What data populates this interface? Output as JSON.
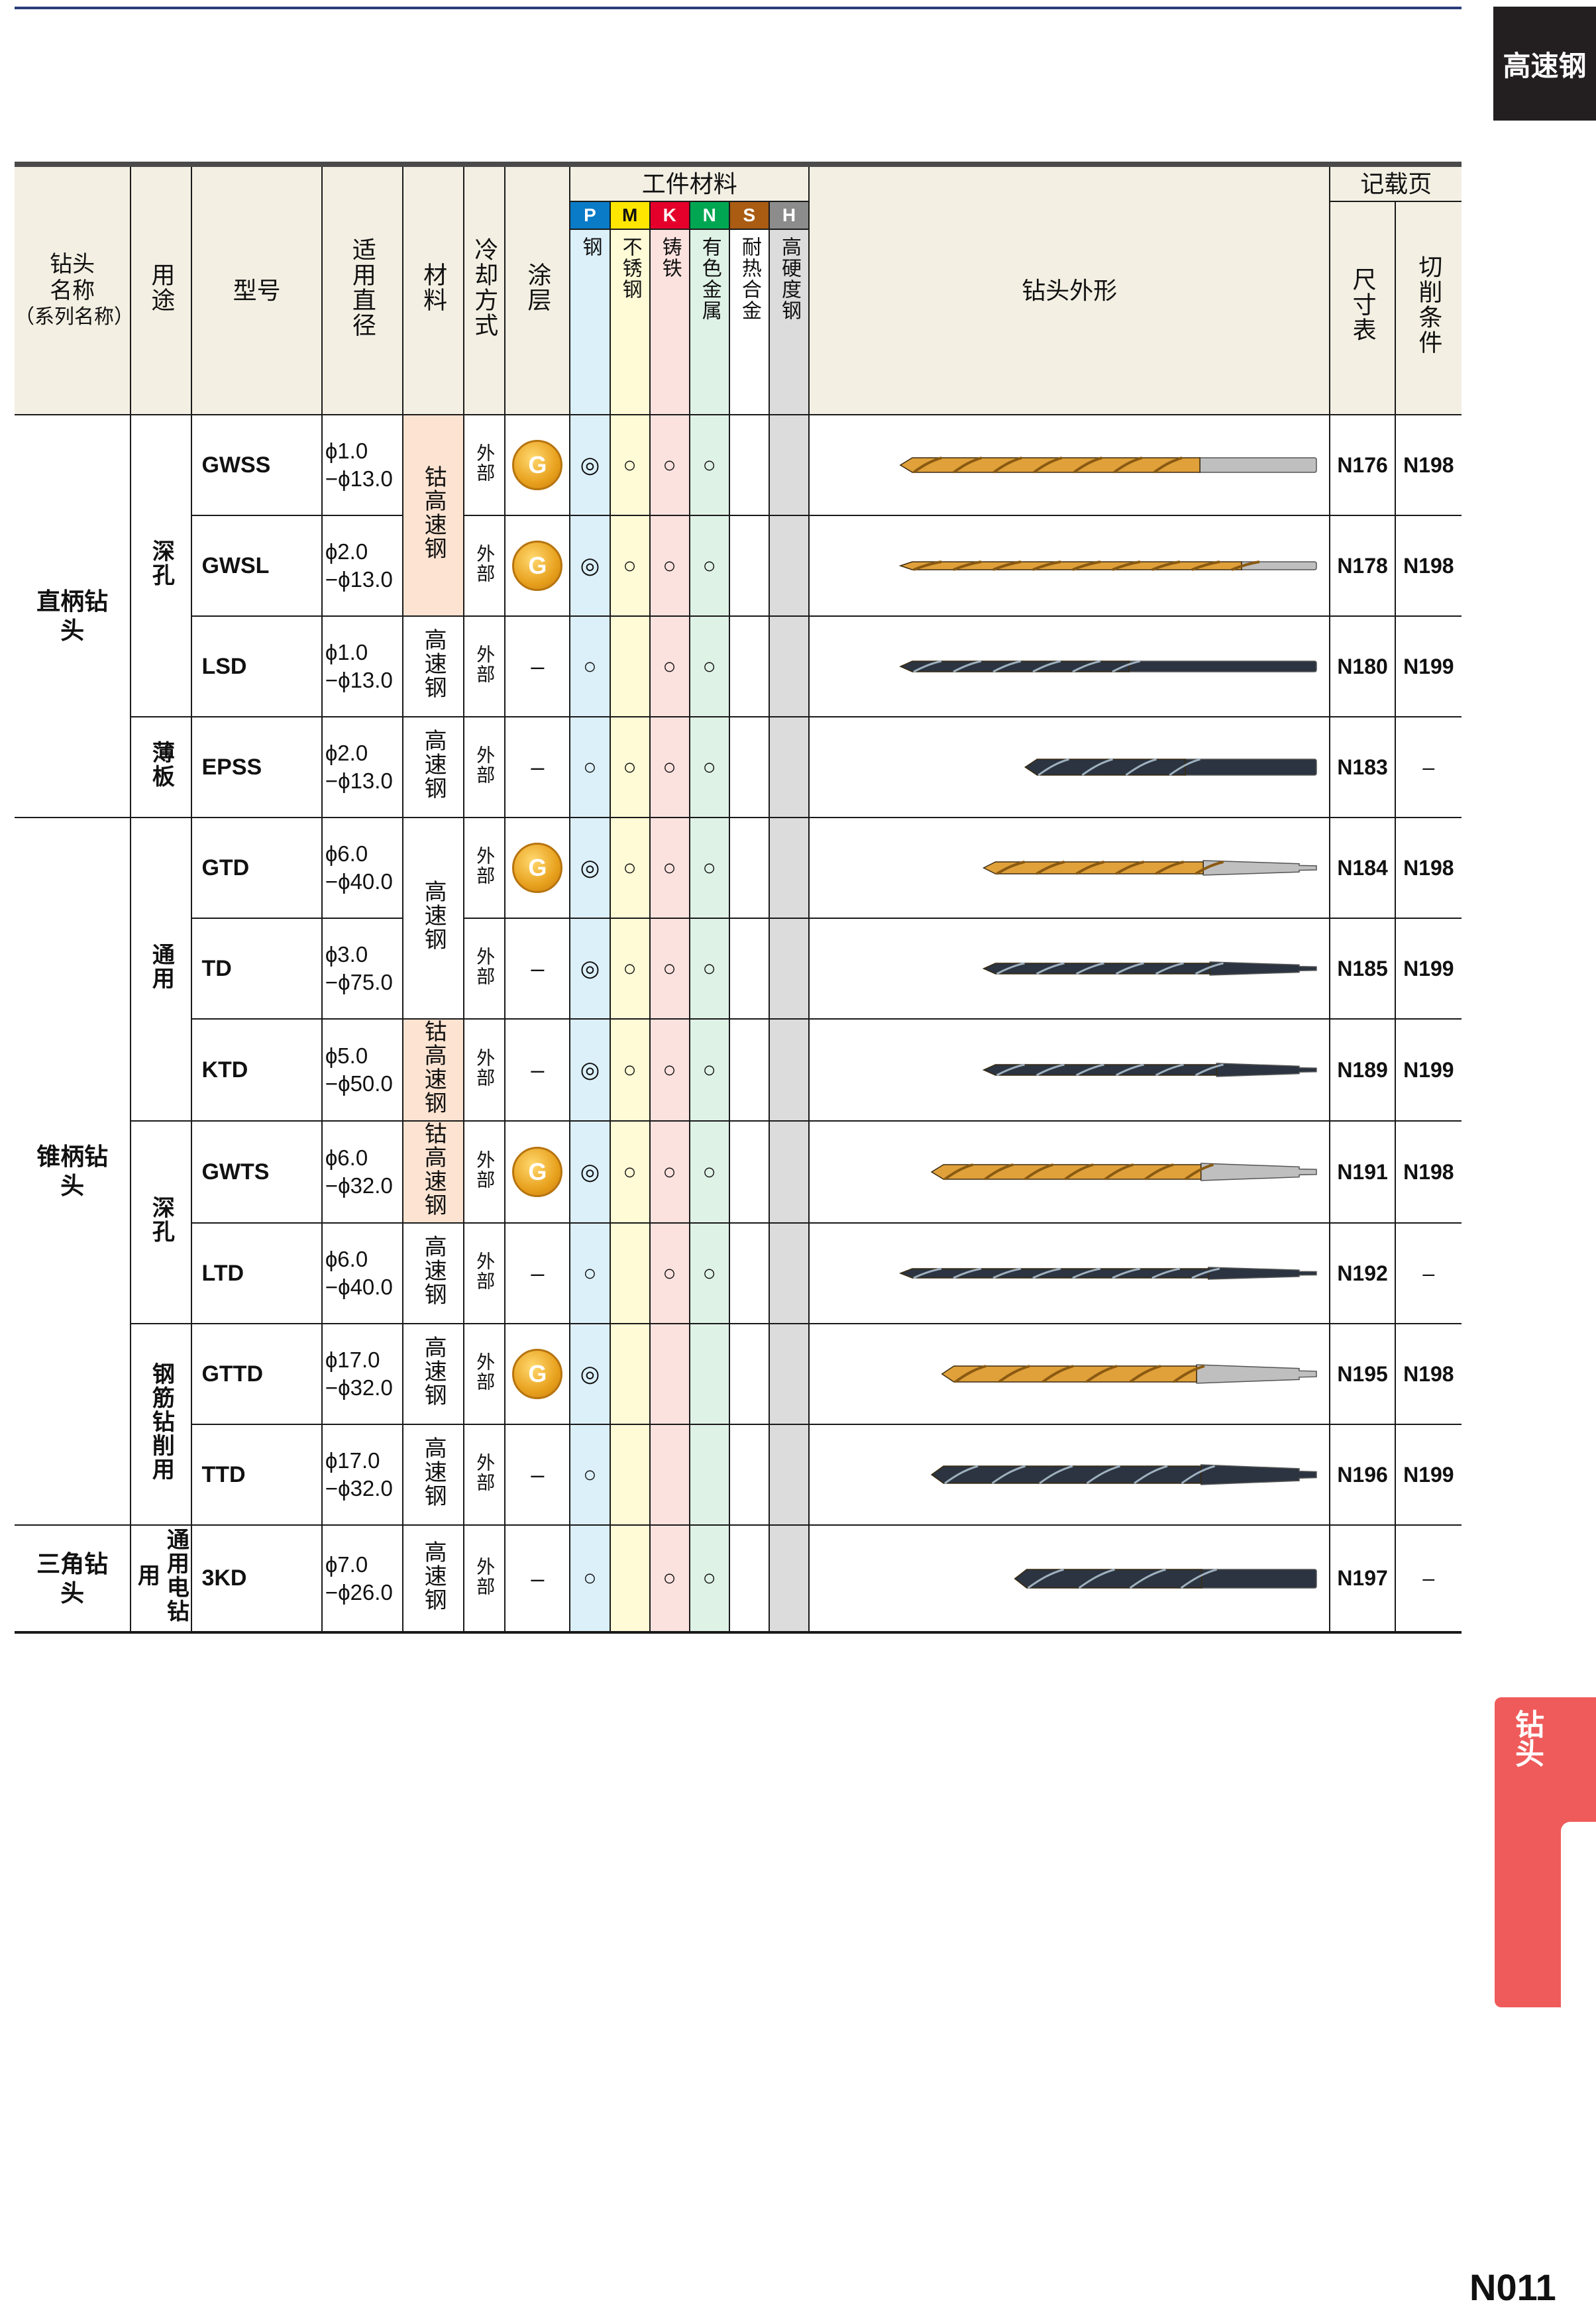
{
  "side_tab_top": "高速钢",
  "side_tab_bottom": "钻头",
  "page_number": "N011",
  "header": {
    "drill_name": [
      "钻头",
      "名称",
      "（系列名称）"
    ],
    "usage": "用途",
    "model": "型号",
    "diameter": "适用直径",
    "material": "材料",
    "cooling": "冷却方式",
    "coating": "涂层",
    "work_material": "工件材料",
    "materials": [
      {
        "letter": "P",
        "name": "钢"
      },
      {
        "letter": "M",
        "name": "不锈钢"
      },
      {
        "letter": "K",
        "name": "铸铁"
      },
      {
        "letter": "N",
        "name": "有色金属"
      },
      {
        "letter": "S",
        "name": "耐热合金"
      },
      {
        "letter": "H",
        "name": "高硬度钢"
      }
    ],
    "shape": "钻头外形",
    "record_page": "记载页",
    "size_table": "尺寸表",
    "cutting_conditions": "切削条件"
  },
  "groups": {
    "straight": "直柄钻头",
    "taper": "锥柄钻头",
    "triangle": "三角钻头"
  },
  "usages": {
    "deep1": "深孔",
    "thin": "薄板",
    "general": "通用",
    "deep2": "深孔",
    "rebar": "钢筋钻削用",
    "power": "通用电钻用"
  },
  "rows": [
    {
      "model": "GWSS",
      "dia1": "ϕ1.0",
      "dia2": "−ϕ13.0",
      "material": "钴高速钢",
      "cooling": "外部",
      "coating": "G",
      "marks": [
        "◎",
        "○",
        "○",
        "○",
        "",
        ""
      ],
      "size_page": "N176",
      "cut_page": "N198"
    },
    {
      "model": "GWSL",
      "dia1": "ϕ2.0",
      "dia2": "−ϕ13.0",
      "material": "",
      "cooling": "外部",
      "coating": "G",
      "marks": [
        "◎",
        "○",
        "○",
        "○",
        "",
        ""
      ],
      "size_page": "N178",
      "cut_page": "N198"
    },
    {
      "model": "LSD",
      "dia1": "ϕ1.0",
      "dia2": "−ϕ13.0",
      "material": "高速钢",
      "cooling": "外部",
      "coating": "–",
      "marks": [
        "○",
        "",
        "○",
        "○",
        "",
        ""
      ],
      "size_page": "N180",
      "cut_page": "N199"
    },
    {
      "model": "EPSS",
      "dia1": "ϕ2.0",
      "dia2": "−ϕ13.0",
      "material": "高速钢",
      "cooling": "外部",
      "coating": "–",
      "marks": [
        "○",
        "○",
        "○",
        "○",
        "",
        ""
      ],
      "size_page": "N183",
      "cut_page": "–"
    },
    {
      "model": "GTD",
      "dia1": "ϕ6.0",
      "dia2": "−ϕ40.0",
      "material": "高速钢",
      "cooling": "外部",
      "coating": "G",
      "marks": [
        "◎",
        "○",
        "○",
        "○",
        "",
        ""
      ],
      "size_page": "N184",
      "cut_page": "N198"
    },
    {
      "model": "TD",
      "dia1": "ϕ3.0",
      "dia2": "−ϕ75.0",
      "material": "",
      "cooling": "外部",
      "coating": "–",
      "marks": [
        "◎",
        "○",
        "○",
        "○",
        "",
        ""
      ],
      "size_page": "N185",
      "cut_page": "N199"
    },
    {
      "model": "KTD",
      "dia1": "ϕ5.0",
      "dia2": "−ϕ50.0",
      "material": "钴高速钢",
      "cooling": "外部",
      "coating": "–",
      "marks": [
        "◎",
        "○",
        "○",
        "○",
        "",
        ""
      ],
      "size_page": "N189",
      "cut_page": "N199"
    },
    {
      "model": "GWTS",
      "dia1": "ϕ6.0",
      "dia2": "−ϕ32.0",
      "material": "钴高速钢",
      "cooling": "外部",
      "coating": "G",
      "marks": [
        "◎",
        "○",
        "○",
        "○",
        "",
        ""
      ],
      "size_page": "N191",
      "cut_page": "N198"
    },
    {
      "model": "LTD",
      "dia1": "ϕ6.0",
      "dia2": "−ϕ40.0",
      "material": "高速钢",
      "cooling": "外部",
      "coating": "–",
      "marks": [
        "○",
        "",
        "○",
        "○",
        "",
        ""
      ],
      "size_page": "N192",
      "cut_page": "–"
    },
    {
      "model": "GTTD",
      "dia1": "ϕ17.0",
      "dia2": "−ϕ32.0",
      "material": "高速钢",
      "cooling": "外部",
      "coating": "G",
      "marks": [
        "◎",
        "",
        "",
        "",
        "",
        ""
      ],
      "size_page": "N195",
      "cut_page": "N198"
    },
    {
      "model": "TTD",
      "dia1": "ϕ17.0",
      "dia2": "−ϕ32.0",
      "material": "高速钢",
      "cooling": "外部",
      "coating": "–",
      "marks": [
        "○",
        "",
        "",
        "",
        "",
        ""
      ],
      "size_page": "N196",
      "cut_page": "N199"
    },
    {
      "model": "3KD",
      "dia1": "ϕ7.0",
      "dia2": "−ϕ26.0",
      "material": "高速钢",
      "cooling": "外部",
      "coating": "–",
      "marks": [
        "○",
        "",
        "○",
        "○",
        "",
        ""
      ],
      "size_page": "N197",
      "cut_page": "–"
    }
  ],
  "colors": {
    "gold_drill": "#e0a03a",
    "black_drill": "#2b3440",
    "peach_cell": "#fde3d1",
    "header_bg": "#f3efe3",
    "tab_red": "#ef5b5b"
  }
}
